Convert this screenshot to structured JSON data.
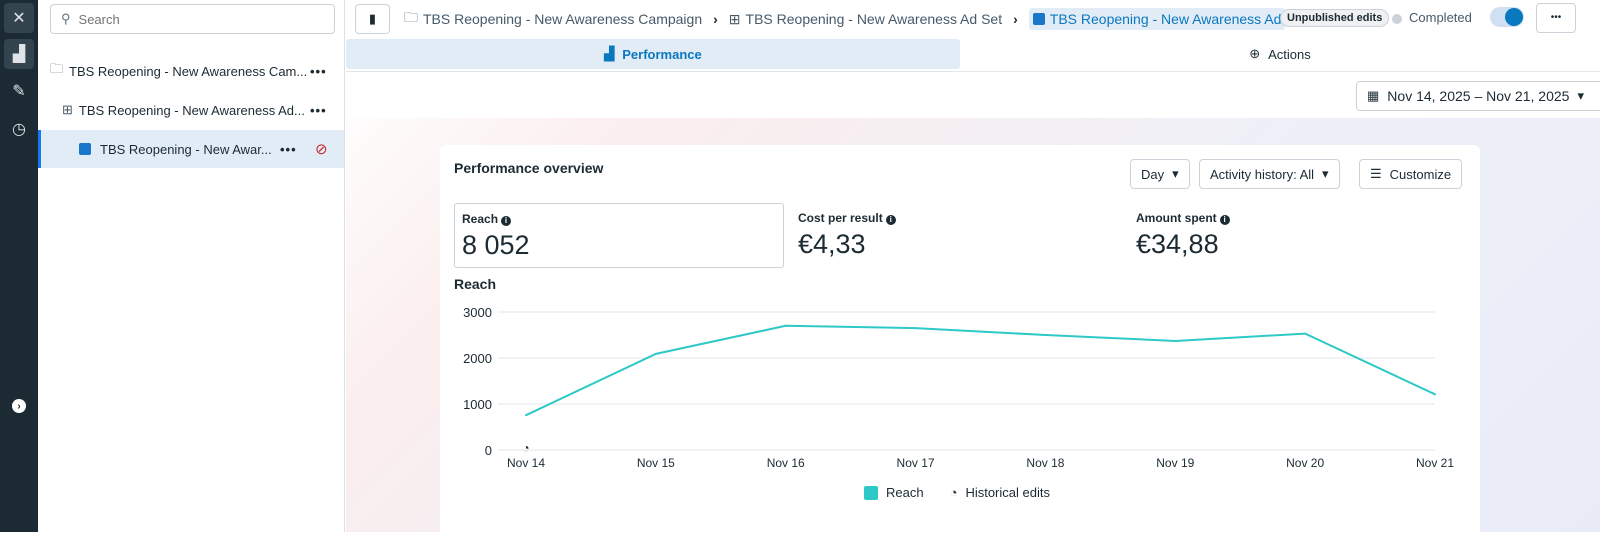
{
  "search": {
    "placeholder": "Search"
  },
  "tree": [
    {
      "label": "TBS Reopening - New Awareness Cam...",
      "icon": "folder-icon"
    },
    {
      "label": "TBS Reopening - New Awareness Ad...",
      "icon": "grid-icon"
    },
    {
      "label": "TBS Reopening - New Awar...",
      "icon": "ad-icon",
      "status_icon": "prohibited-icon"
    }
  ],
  "breadcrumb": [
    "TBS Reopening - New Awareness Campaign",
    "TBS Reopening - New Awareness Ad Set",
    "TBS Reopening - New Awareness Ad"
  ],
  "header": {
    "badge": "Unpublished edits",
    "status": "Completed",
    "toggle_on": true,
    "more": "•••"
  },
  "tabs": {
    "performance": "Performance",
    "actions": "Actions"
  },
  "date_range": "Nov 14, 2025 – Nov 21, 2025",
  "card": {
    "title": "Performance overview",
    "day": "Day",
    "activity": "Activity history: All",
    "customize": "Customize"
  },
  "metrics": [
    {
      "label": "Reach",
      "value": "8 052"
    },
    {
      "label": "Cost per result",
      "value": "€4,33"
    },
    {
      "label": "Amount spent",
      "value": "€34,88"
    }
  ],
  "colors": {
    "accent": "#0a78be",
    "series": "#2ec9c7"
  },
  "chart_data": {
    "type": "line",
    "title": "Reach",
    "categories": [
      "Nov 14",
      "Nov 15",
      "Nov 16",
      "Nov 17",
      "Nov 18",
      "Nov 19",
      "Nov 20",
      "Nov 21"
    ],
    "series": [
      {
        "name": "Reach",
        "values": [
          757,
          2090,
          2700,
          2650,
          2500,
          2370,
          2530,
          1210
        ]
      }
    ],
    "ylim": [
      0,
      3000
    ],
    "yticks": [
      "0",
      "1000",
      "2000",
      "3000"
    ],
    "grid": true,
    "legend_position": "bottom",
    "legend": [
      "Reach",
      "Historical edits"
    ]
  }
}
